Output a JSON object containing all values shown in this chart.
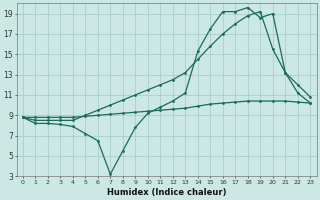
{
  "xlabel": "Humidex (Indice chaleur)",
  "bg_color": "#cce8e4",
  "grid_color": "#aaceca",
  "line_color": "#1a6b5a",
  "xlim": [
    -0.5,
    23.5
  ],
  "ylim": [
    3,
    20
  ],
  "xticks": [
    0,
    1,
    2,
    3,
    4,
    5,
    6,
    7,
    8,
    9,
    10,
    11,
    12,
    13,
    14,
    15,
    16,
    17,
    18,
    19,
    20,
    21,
    22,
    23
  ],
  "yticks": [
    3,
    5,
    7,
    9,
    11,
    13,
    15,
    17,
    19
  ],
  "line1_x": [
    0,
    1,
    2,
    3,
    4,
    5,
    6,
    7,
    8,
    9,
    10,
    11,
    12,
    13,
    14,
    15,
    16,
    17,
    18,
    19,
    20,
    21,
    22,
    23
  ],
  "line1_y": [
    8.8,
    8.2,
    8.2,
    8.1,
    7.9,
    7.2,
    6.5,
    3.2,
    5.5,
    7.8,
    9.2,
    9.8,
    10.4,
    11.2,
    15.3,
    17.5,
    19.2,
    19.2,
    19.6,
    18.6,
    19.0,
    13.2,
    11.2,
    10.2
  ],
  "line2_x": [
    0,
    1,
    2,
    3,
    4,
    5,
    6,
    7,
    8,
    9,
    10,
    11,
    12,
    13,
    14,
    15,
    16,
    17,
    18,
    19,
    20,
    21,
    22,
    23
  ],
  "line2_y": [
    8.8,
    8.8,
    8.8,
    8.8,
    8.8,
    8.9,
    9.0,
    9.1,
    9.2,
    9.3,
    9.4,
    9.5,
    9.6,
    9.7,
    9.9,
    10.1,
    10.2,
    10.3,
    10.4,
    10.4,
    10.4,
    10.4,
    10.3,
    10.2
  ],
  "line3_x": [
    0,
    1,
    2,
    3,
    4,
    5,
    6,
    7,
    8,
    9,
    10,
    11,
    12,
    13,
    14,
    15,
    16,
    17,
    18,
    19,
    20,
    21,
    22,
    23
  ],
  "line3_y": [
    8.8,
    8.5,
    8.5,
    8.5,
    8.5,
    9.0,
    9.5,
    10.0,
    10.5,
    11.0,
    11.5,
    12.0,
    12.5,
    13.2,
    14.5,
    15.8,
    17.0,
    18.0,
    18.8,
    19.2,
    15.5,
    13.2,
    12.0,
    10.8
  ]
}
